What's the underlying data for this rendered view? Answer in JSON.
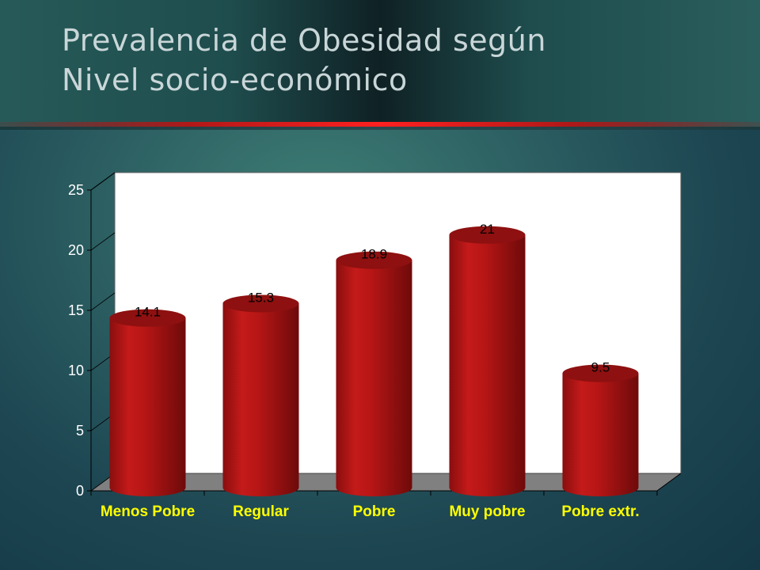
{
  "title_lines": [
    "Prevalencia de Obesidad según",
    "Nivel socio-económico"
  ],
  "chart_data": {
    "type": "bar",
    "categories": [
      "Menos Pobre",
      "Regular",
      "Pobre",
      "Muy pobre",
      "Pobre extr."
    ],
    "values": [
      14.1,
      15.3,
      18.9,
      21,
      9.5
    ],
    "data_labels": [
      "14.1",
      "15.3",
      "18.9",
      "21",
      "9.5"
    ],
    "y_ticks": [
      "0",
      "5",
      "10",
      "15",
      "20",
      "25"
    ],
    "ylim": [
      0,
      25
    ],
    "grid": false,
    "legend": "none",
    "colors": {
      "bar": "#b01414",
      "bar_dark": "#7a0c0c",
      "bar_top": "#8e1010",
      "axis_label": "#ffff00",
      "tick_label": "#ffffff",
      "plot_bg": "#ffffff",
      "floor": "#808080"
    }
  }
}
